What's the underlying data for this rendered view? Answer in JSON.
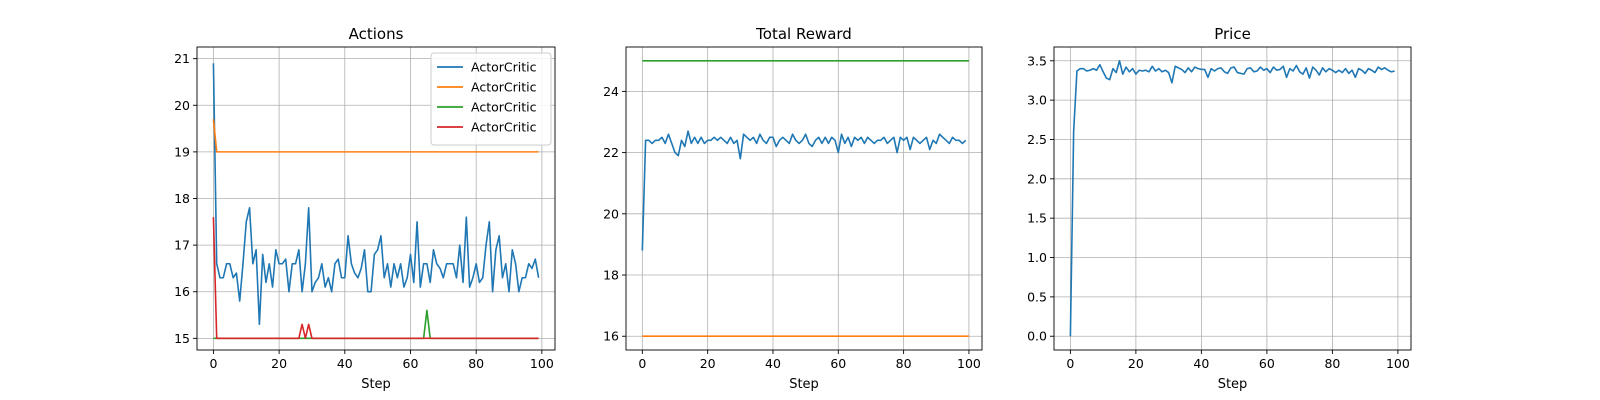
{
  "chart_data": [
    {
      "type": "line",
      "title": "Actions",
      "xlabel": "Step",
      "ylabel": "",
      "xlim": [
        -5,
        104
      ],
      "ylim": [
        14.75,
        21.25
      ],
      "xticks": [
        0,
        20,
        40,
        60,
        80,
        100
      ],
      "yticks": [
        15,
        16,
        17,
        18,
        19,
        20,
        21
      ],
      "grid": true,
      "legend": {
        "placement": "top-right"
      },
      "series": [
        {
          "name": "ActorCritic",
          "color": "#1f77b4",
          "x": [
            0,
            1,
            2,
            3,
            4,
            5,
            6,
            7,
            8,
            9,
            10,
            11,
            12,
            13,
            14,
            15,
            16,
            17,
            18,
            19,
            20,
            21,
            22,
            23,
            24,
            25,
            26,
            27,
            28,
            29,
            30,
            31,
            32,
            33,
            34,
            35,
            36,
            37,
            38,
            39,
            40,
            41,
            42,
            43,
            44,
            45,
            46,
            47,
            48,
            49,
            50,
            51,
            52,
            53,
            54,
            55,
            56,
            57,
            58,
            59,
            60,
            61,
            62,
            63,
            64,
            65,
            66,
            67,
            68,
            69,
            70,
            71,
            72,
            73,
            74,
            75,
            76,
            77,
            78,
            79,
            80,
            81,
            82,
            83,
            84,
            85,
            86,
            87,
            88,
            89,
            90,
            91,
            92,
            93,
            94,
            95,
            96,
            97,
            98,
            99
          ],
          "y": [
            20.9,
            16.6,
            16.3,
            16.3,
            16.6,
            16.6,
            16.3,
            16.4,
            15.8,
            16.6,
            17.5,
            17.8,
            16.6,
            16.9,
            15.3,
            16.8,
            16.2,
            16.6,
            16.1,
            16.9,
            16.6,
            16.6,
            16.7,
            16.0,
            16.6,
            16.6,
            16.9,
            16.0,
            16.6,
            17.8,
            16.0,
            16.2,
            16.3,
            16.6,
            16.1,
            16.3,
            16.0,
            16.6,
            16.7,
            16.3,
            16.3,
            17.2,
            16.6,
            16.4,
            16.3,
            16.5,
            16.9,
            16.0,
            16.0,
            16.8,
            16.9,
            17.2,
            16.3,
            16.6,
            16.1,
            16.6,
            16.3,
            16.6,
            16.1,
            16.3,
            16.8,
            16.2,
            17.5,
            16.1,
            16.6,
            16.6,
            16.2,
            16.9,
            16.6,
            16.5,
            16.3,
            16.6,
            16.6,
            16.6,
            16.3,
            17.0,
            16.2,
            17.6,
            16.1,
            16.3,
            16.6,
            16.2,
            16.3,
            17.0,
            17.5,
            16.0,
            16.9,
            17.2,
            16.3,
            16.6,
            16.0,
            16.9,
            16.6,
            16.0,
            16.3,
            16.3,
            16.6,
            16.5,
            16.7,
            16.3
          ]
        },
        {
          "name": "ActorCritic",
          "color": "#ff7f0e",
          "x": [
            0,
            1,
            2,
            3,
            99
          ],
          "y": [
            19.7,
            19.0,
            19.0,
            19.0,
            19.0
          ]
        },
        {
          "name": "ActorCritic",
          "color": "#2ca02c",
          "x": [
            0,
            1,
            64,
            65,
            66,
            99
          ],
          "y": [
            15.0,
            15.0,
            15.0,
            15.6,
            15.0,
            15.0
          ]
        },
        {
          "name": "ActorCritic",
          "color": "#d62728",
          "x": [
            0,
            1,
            26,
            27,
            28,
            29,
            30,
            99
          ],
          "y": [
            17.6,
            15.0,
            15.0,
            15.3,
            15.0,
            15.3,
            15.0,
            15.0
          ]
        }
      ]
    },
    {
      "type": "line",
      "title": "Total Reward",
      "xlabel": "Step",
      "ylabel": "",
      "xlim": [
        -5,
        104
      ],
      "ylim": [
        15.55,
        25.45
      ],
      "xticks": [
        0,
        20,
        40,
        60,
        80,
        100
      ],
      "yticks": [
        16,
        18,
        20,
        22,
        24
      ],
      "grid": true,
      "series": [
        {
          "color": "#1f77b4",
          "x": [
            0,
            1,
            2,
            3,
            4,
            5,
            6,
            7,
            8,
            9,
            10,
            11,
            12,
            13,
            14,
            15,
            16,
            17,
            18,
            19,
            20,
            21,
            22,
            23,
            24,
            25,
            26,
            27,
            28,
            29,
            30,
            31,
            32,
            33,
            34,
            35,
            36,
            37,
            38,
            39,
            40,
            41,
            42,
            43,
            44,
            45,
            46,
            47,
            48,
            49,
            50,
            51,
            52,
            53,
            54,
            55,
            56,
            57,
            58,
            59,
            60,
            61,
            62,
            63,
            64,
            65,
            66,
            67,
            68,
            69,
            70,
            71,
            72,
            73,
            74,
            75,
            76,
            77,
            78,
            79,
            80,
            81,
            82,
            83,
            84,
            85,
            86,
            87,
            88,
            89,
            90,
            91,
            92,
            93,
            94,
            95,
            96,
            97,
            98,
            99
          ],
          "y": [
            18.8,
            22.4,
            22.4,
            22.3,
            22.4,
            22.4,
            22.5,
            22.3,
            22.6,
            22.3,
            22.0,
            21.9,
            22.4,
            22.2,
            22.7,
            22.3,
            22.5,
            22.3,
            22.5,
            22.3,
            22.4,
            22.4,
            22.5,
            22.4,
            22.5,
            22.4,
            22.3,
            22.5,
            22.3,
            22.4,
            21.8,
            22.6,
            22.5,
            22.4,
            22.5,
            22.3,
            22.6,
            22.4,
            22.3,
            22.5,
            22.5,
            22.2,
            22.4,
            22.5,
            22.4,
            22.3,
            22.6,
            22.4,
            22.3,
            22.4,
            22.6,
            22.3,
            22.2,
            22.4,
            22.5,
            22.3,
            22.5,
            22.3,
            22.5,
            22.4,
            22.0,
            22.6,
            22.3,
            22.5,
            22.2,
            22.5,
            22.4,
            22.5,
            22.3,
            22.5,
            22.4,
            22.3,
            22.4,
            22.4,
            22.5,
            22.3,
            22.4,
            22.5,
            22.0,
            22.5,
            22.4,
            22.5,
            22.1,
            22.5,
            22.4,
            22.3,
            22.4,
            22.5,
            22.1,
            22.4,
            22.3,
            22.6,
            22.5,
            22.4,
            22.3,
            22.5,
            22.4,
            22.4,
            22.3,
            22.4
          ]
        },
        {
          "color": "#ff7f0e",
          "x": [
            0,
            100
          ],
          "y": [
            16.0,
            16.0
          ]
        },
        {
          "color": "#2ca02c",
          "x": [
            0,
            100
          ],
          "y": [
            25.0,
            25.0
          ]
        }
      ]
    },
    {
      "type": "line",
      "title": "Price",
      "xlabel": "Step",
      "ylabel": "",
      "xlim": [
        -5,
        104
      ],
      "ylim": [
        -0.175,
        3.675
      ],
      "xticks": [
        0,
        20,
        40,
        60,
        80,
        100
      ],
      "yticks": [
        0.0,
        0.5,
        1.0,
        1.5,
        2.0,
        2.5,
        3.0,
        3.5
      ],
      "ytick_labels": [
        "0.0",
        "0.5",
        "1.0",
        "1.5",
        "2.0",
        "2.5",
        "3.0",
        "3.5"
      ],
      "grid": true,
      "series": [
        {
          "color": "#1f77b4",
          "x": [
            0,
            1,
            2,
            3,
            4,
            5,
            6,
            7,
            8,
            9,
            10,
            11,
            12,
            13,
            14,
            15,
            16,
            17,
            18,
            19,
            20,
            21,
            22,
            23,
            24,
            25,
            26,
            27,
            28,
            29,
            30,
            31,
            32,
            33,
            34,
            35,
            36,
            37,
            38,
            39,
            40,
            41,
            42,
            43,
            44,
            45,
            46,
            47,
            48,
            49,
            50,
            51,
            52,
            53,
            54,
            55,
            56,
            57,
            58,
            59,
            60,
            61,
            62,
            63,
            64,
            65,
            66,
            67,
            68,
            69,
            70,
            71,
            72,
            73,
            74,
            75,
            76,
            77,
            78,
            79,
            80,
            81,
            82,
            83,
            84,
            85,
            86,
            87,
            88,
            89,
            90,
            91,
            92,
            93,
            94,
            95,
            96,
            97,
            98,
            99
          ],
          "y": [
            0.0,
            2.6,
            3.37,
            3.4,
            3.4,
            3.37,
            3.38,
            3.4,
            3.38,
            3.45,
            3.36,
            3.28,
            3.26,
            3.4,
            3.35,
            3.5,
            3.33,
            3.42,
            3.36,
            3.4,
            3.33,
            3.38,
            3.37,
            3.38,
            3.36,
            3.43,
            3.37,
            3.4,
            3.36,
            3.38,
            3.35,
            3.22,
            3.43,
            3.41,
            3.39,
            3.35,
            3.41,
            3.36,
            3.42,
            3.4,
            3.39,
            3.39,
            3.29,
            3.4,
            3.37,
            3.4,
            3.41,
            3.36,
            3.34,
            3.41,
            3.42,
            3.35,
            3.34,
            3.33,
            3.4,
            3.41,
            3.36,
            3.37,
            3.42,
            3.38,
            3.4,
            3.35,
            3.42,
            3.38,
            3.39,
            3.43,
            3.29,
            3.4,
            3.37,
            3.44,
            3.36,
            3.33,
            3.41,
            3.28,
            3.42,
            3.38,
            3.32,
            3.41,
            3.36,
            3.4,
            3.38,
            3.35,
            3.38,
            3.35,
            3.4,
            3.34,
            3.38,
            3.29,
            3.4,
            3.38,
            3.34,
            3.4,
            3.38,
            3.35,
            3.42,
            3.39,
            3.41,
            3.38,
            3.36,
            3.37
          ]
        }
      ]
    }
  ]
}
